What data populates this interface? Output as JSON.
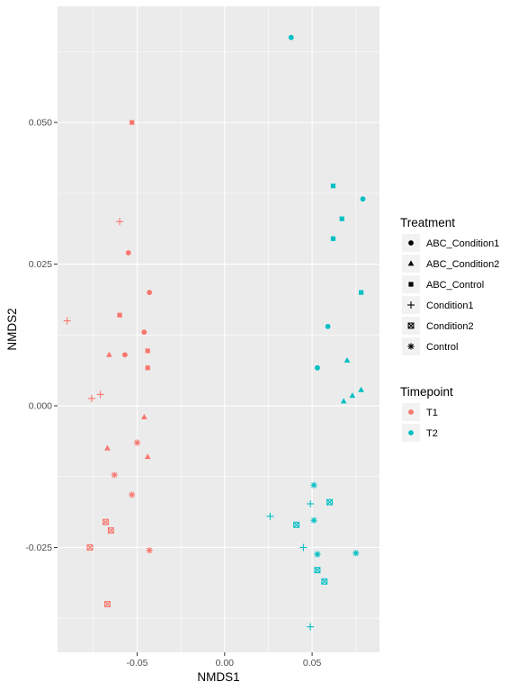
{
  "chart_data": {
    "type": "scatter",
    "title": "",
    "xlabel": "NMDS1",
    "ylabel": "NMDS2",
    "xlim": [
      -0.0955,
      0.0885
    ],
    "ylim": [
      -0.0435,
      0.0705
    ],
    "x_ticks": [
      -0.05,
      0.0,
      0.05
    ],
    "x_tick_labels": [
      "-0.05",
      "0.00",
      "0.05"
    ],
    "y_ticks": [
      -0.025,
      0.0,
      0.025,
      0.05
    ],
    "y_tick_labels": [
      "-0.025",
      "0.000",
      "0.025",
      "0.050"
    ],
    "grid": true,
    "legend_placement": "right",
    "shape_legend": {
      "title": "Treatment",
      "entries": [
        {
          "label": "ABC_Condition1",
          "shape": "circle"
        },
        {
          "label": "ABC_Condition2",
          "shape": "triangle"
        },
        {
          "label": "ABC_Control",
          "shape": "square"
        },
        {
          "label": "Condition1",
          "shape": "plus"
        },
        {
          "label": "Condition2",
          "shape": "boxed-x"
        },
        {
          "label": "Control",
          "shape": "asterisk"
        }
      ]
    },
    "color_legend": {
      "title": "Timepoint",
      "entries": [
        {
          "label": "T1",
          "color": "#F8766D"
        },
        {
          "label": "T2",
          "color": "#00BFC4"
        }
      ]
    },
    "points": [
      {
        "x": -0.055,
        "y": 0.027,
        "treatment": "ABC_Condition1",
        "timepoint": "T1"
      },
      {
        "x": -0.043,
        "y": 0.02,
        "treatment": "ABC_Condition1",
        "timepoint": "T1"
      },
      {
        "x": -0.046,
        "y": 0.013,
        "treatment": "ABC_Condition1",
        "timepoint": "T1"
      },
      {
        "x": -0.057,
        "y": 0.009,
        "treatment": "ABC_Condition1",
        "timepoint": "T1"
      },
      {
        "x": -0.066,
        "y": 0.009,
        "treatment": "ABC_Condition2",
        "timepoint": "T1"
      },
      {
        "x": -0.046,
        "y": -0.002,
        "treatment": "ABC_Condition2",
        "timepoint": "T1"
      },
      {
        "x": -0.067,
        "y": -0.0075,
        "treatment": "ABC_Condition2",
        "timepoint": "T1"
      },
      {
        "x": -0.044,
        "y": -0.009,
        "treatment": "ABC_Condition2",
        "timepoint": "T1"
      },
      {
        "x": -0.053,
        "y": 0.05,
        "treatment": "ABC_Control",
        "timepoint": "T1"
      },
      {
        "x": -0.06,
        "y": 0.016,
        "treatment": "ABC_Control",
        "timepoint": "T1"
      },
      {
        "x": -0.044,
        "y": 0.0097,
        "treatment": "ABC_Control",
        "timepoint": "T1"
      },
      {
        "x": -0.044,
        "y": 0.0067,
        "treatment": "ABC_Control",
        "timepoint": "T1"
      },
      {
        "x": -0.06,
        "y": 0.0325,
        "treatment": "Condition1",
        "timepoint": "T1"
      },
      {
        "x": -0.09,
        "y": 0.015,
        "treatment": "Condition1",
        "timepoint": "T1"
      },
      {
        "x": -0.071,
        "y": 0.002,
        "treatment": "Condition1",
        "timepoint": "T1"
      },
      {
        "x": -0.076,
        "y": 0.0013,
        "treatment": "Condition1",
        "timepoint": "T1"
      },
      {
        "x": -0.068,
        "y": -0.0205,
        "treatment": "Condition2",
        "timepoint": "T1"
      },
      {
        "x": -0.065,
        "y": -0.022,
        "treatment": "Condition2",
        "timepoint": "T1"
      },
      {
        "x": -0.077,
        "y": -0.025,
        "treatment": "Condition2",
        "timepoint": "T1"
      },
      {
        "x": -0.067,
        "y": -0.035,
        "treatment": "Condition2",
        "timepoint": "T1"
      },
      {
        "x": -0.05,
        "y": -0.0065,
        "treatment": "Control",
        "timepoint": "T1"
      },
      {
        "x": -0.063,
        "y": -0.0122,
        "treatment": "Control",
        "timepoint": "T1"
      },
      {
        "x": -0.053,
        "y": -0.0157,
        "treatment": "Control",
        "timepoint": "T1"
      },
      {
        "x": -0.043,
        "y": -0.0255,
        "treatment": "Control",
        "timepoint": "T1"
      },
      {
        "x": 0.038,
        "y": 0.065,
        "treatment": "ABC_Condition1",
        "timepoint": "T2"
      },
      {
        "x": 0.079,
        "y": 0.0365,
        "treatment": "ABC_Condition1",
        "timepoint": "T2"
      },
      {
        "x": 0.059,
        "y": 0.014,
        "treatment": "ABC_Condition1",
        "timepoint": "T2"
      },
      {
        "x": 0.053,
        "y": 0.0067,
        "treatment": "ABC_Condition1",
        "timepoint": "T2"
      },
      {
        "x": 0.07,
        "y": 0.008,
        "treatment": "ABC_Condition2",
        "timepoint": "T2"
      },
      {
        "x": 0.078,
        "y": 0.0028,
        "treatment": "ABC_Condition2",
        "timepoint": "T2"
      },
      {
        "x": 0.073,
        "y": 0.0018,
        "treatment": "ABC_Condition2",
        "timepoint": "T2"
      },
      {
        "x": 0.068,
        "y": 0.0008,
        "treatment": "ABC_Condition2",
        "timepoint": "T2"
      },
      {
        "x": 0.062,
        "y": 0.0388,
        "treatment": "ABC_Control",
        "timepoint": "T2"
      },
      {
        "x": 0.067,
        "y": 0.033,
        "treatment": "ABC_Control",
        "timepoint": "T2"
      },
      {
        "x": 0.062,
        "y": 0.0295,
        "treatment": "ABC_Control",
        "timepoint": "T2"
      },
      {
        "x": 0.078,
        "y": 0.02,
        "treatment": "ABC_Control",
        "timepoint": "T2"
      },
      {
        "x": 0.049,
        "y": -0.0173,
        "treatment": "Condition1",
        "timepoint": "T2"
      },
      {
        "x": 0.026,
        "y": -0.0195,
        "treatment": "Condition1",
        "timepoint": "T2"
      },
      {
        "x": 0.045,
        "y": -0.025,
        "treatment": "Condition1",
        "timepoint": "T2"
      },
      {
        "x": 0.049,
        "y": -0.039,
        "treatment": "Condition1",
        "timepoint": "T2"
      },
      {
        "x": 0.06,
        "y": -0.017,
        "treatment": "Condition2",
        "timepoint": "T2"
      },
      {
        "x": 0.041,
        "y": -0.021,
        "treatment": "Condition2",
        "timepoint": "T2"
      },
      {
        "x": 0.053,
        "y": -0.029,
        "treatment": "Condition2",
        "timepoint": "T2"
      },
      {
        "x": 0.057,
        "y": -0.031,
        "treatment": "Condition2",
        "timepoint": "T2"
      },
      {
        "x": 0.051,
        "y": -0.014,
        "treatment": "Control",
        "timepoint": "T2"
      },
      {
        "x": 0.051,
        "y": -0.0202,
        "treatment": "Control",
        "timepoint": "T2"
      },
      {
        "x": 0.053,
        "y": -0.0262,
        "treatment": "Control",
        "timepoint": "T2"
      },
      {
        "x": 0.075,
        "y": -0.026,
        "treatment": "Control",
        "timepoint": "T2"
      }
    ]
  }
}
